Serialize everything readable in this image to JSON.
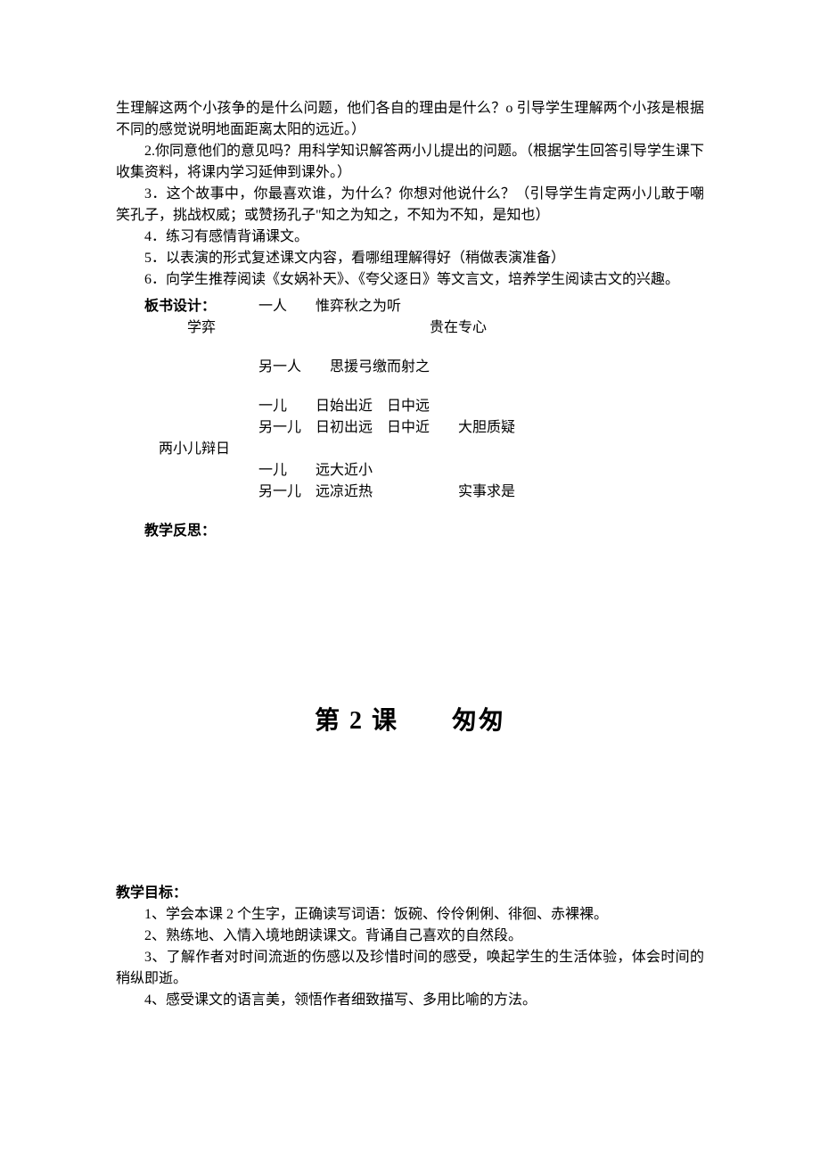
{
  "paragraphs": {
    "p1": "生理解这两个小孩争的是什么问题，他们各自的理由是什么？o 引导学生理解两个小孩是根据不同的感觉说明地面距离太阳的远近。）",
    "p2": "2.你同意他们的意见吗？用科学知识解答两小儿提出的问题。（根据学生回答引导学生课下收集资料，将课内学习延伸到课外。）",
    "p3": "3．这个故事中，你最喜欢谁，为什么？你想对他说什么？（引导学生肯定两小儿敢于嘲笑孔子，挑战权威；或赞扬孔子\"知之为知之，不知为不知，是知也）",
    "p4": "4．练习有感情背诵课文。",
    "p5": "5．以表演的形式复述课文内容，看哪组理解得好（稍做表演准备）",
    "p6": "6．向学生推荐阅读《女娲补天》、《夸父逐日》等文言文，培养学生阅读古文的兴趣。"
  },
  "board": {
    "label": "板书设计：",
    "r1_a": "一人",
    "r1_b": "惟弈秋之为听",
    "r2_a": "学弈",
    "r2_b": "贵在专心",
    "r3_a": "另一人",
    "r3_b": "思援弓缴而射之",
    "r4_a": "一儿",
    "r4_b": "日始出近",
    "r4_c": "日中远",
    "r5_a": "另一儿",
    "r5_b": "日初出远",
    "r5_c": "日中近",
    "r5_d": "大胆质疑",
    "r6_a": "两小儿辩日",
    "r7_a": "一儿",
    "r7_b": "远大近小",
    "r8_a": "另一儿",
    "r8_b": "远凉近热",
    "r8_c": "实事求是"
  },
  "reflection_label": "教学反思：",
  "lesson_title": "第 2 课　　匆匆",
  "objectives": {
    "label": "教学目标：",
    "o1": "1、学会本课 2 个生字，正确读写词语：饭碗、伶伶俐俐、徘徊、赤裸裸。",
    "o2": "2、熟练地、入情入境地朗读课文。背诵自己喜欢的自然段。",
    "o3": "3、了解作者对时间流逝的伤感以及珍惜时间的感受，唤起学生的生活体验，体会时间的稍纵即逝。",
    "o4": "4、感受课文的语言美，领悟作者细致描写、多用比喻的方法。"
  }
}
